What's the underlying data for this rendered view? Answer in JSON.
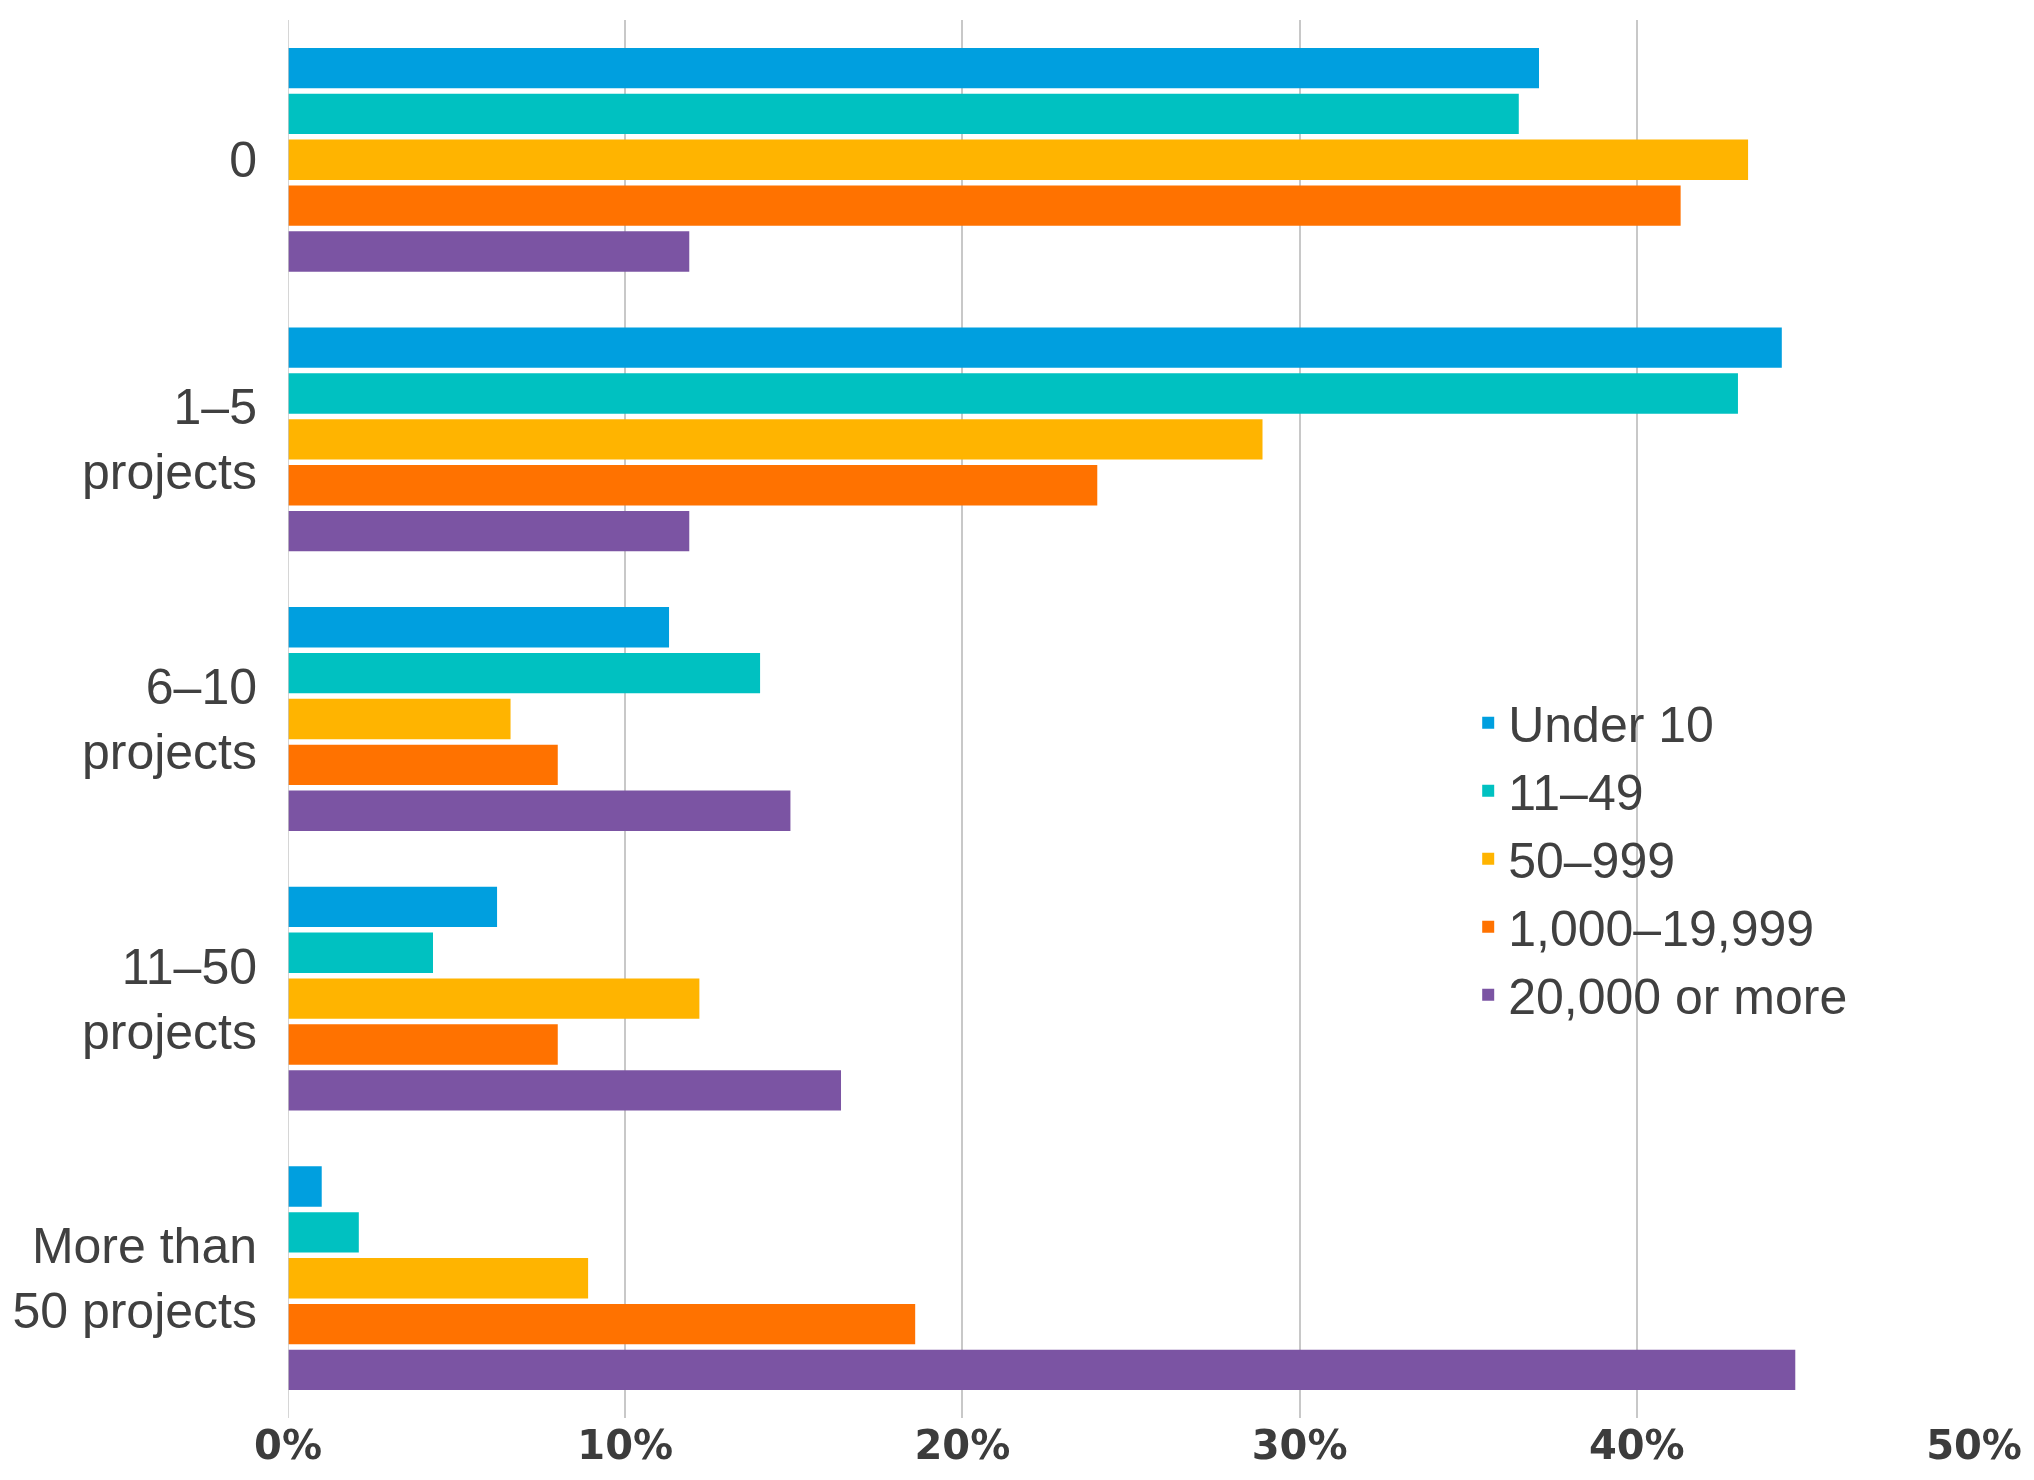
{
  "chart_data": {
    "type": "bar",
    "orientation": "horizontal",
    "categories": [
      "0",
      "1–5 projects",
      "6–10 projects",
      "11–50 projects",
      "More than 50 projects"
    ],
    "series": [
      {
        "name": "Under 10",
        "color": "#009fdf",
        "values": [
          37.1,
          44.3,
          11.3,
          6.2,
          1.0
        ]
      },
      {
        "name": "11–49",
        "color": "#00c1c1",
        "values": [
          36.5,
          43.0,
          14.0,
          4.3,
          2.1
        ]
      },
      {
        "name": "50–999",
        "color": "#ffb400",
        "values": [
          43.3,
          28.9,
          6.6,
          12.2,
          8.9
        ]
      },
      {
        "name": "1,000–19,999",
        "color": "#ff7200",
        "values": [
          41.3,
          24.0,
          8.0,
          8.0,
          18.6
        ]
      },
      {
        "name": "20,000 or more",
        "color": "#7b54a3",
        "values": [
          11.9,
          11.9,
          14.9,
          16.4,
          44.7
        ]
      }
    ],
    "xlim": [
      0,
      50
    ],
    "xticks": [
      {
        "value": 0,
        "label": "0%"
      },
      {
        "value": 10,
        "label": "10%"
      },
      {
        "value": 20,
        "label": "20%"
      },
      {
        "value": 30,
        "label": "30%"
      },
      {
        "value": 40,
        "label": "40%"
      },
      {
        "value": 50,
        "label": "50%"
      }
    ],
    "grid": "x",
    "legend": "right"
  }
}
